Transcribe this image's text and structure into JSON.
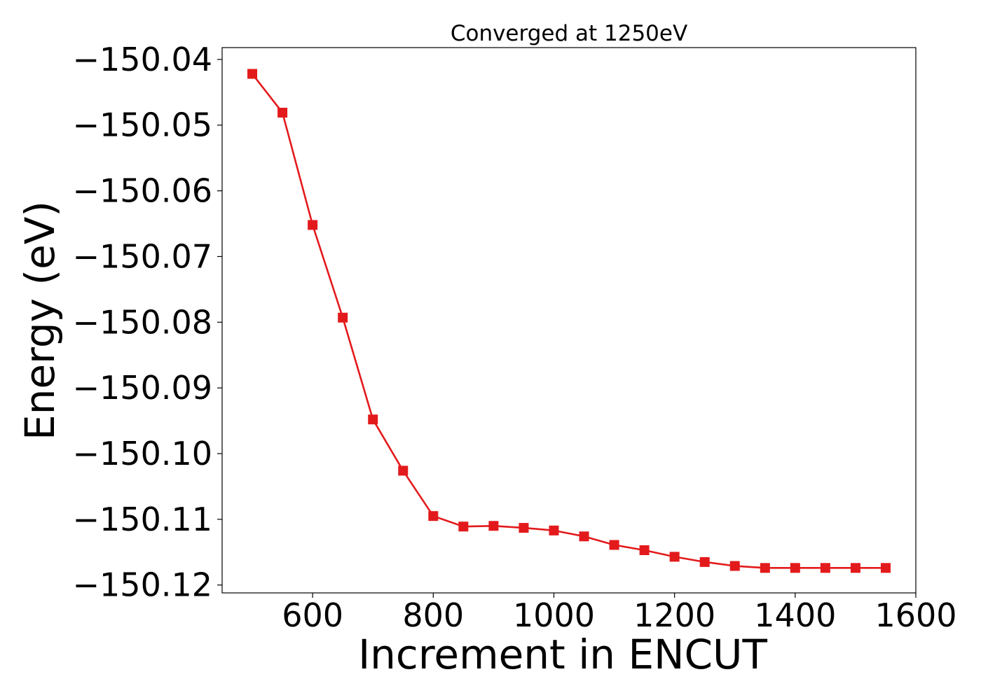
{
  "chart_data": {
    "type": "line",
    "title": "Converged at 1250eV",
    "xlabel": "Increment in ENCUT",
    "ylabel": "Energy (eV)",
    "xlim": [
      450,
      1600
    ],
    "ylim": [
      -150.1212,
      -150.0382
    ],
    "xticks": [
      600,
      800,
      1000,
      1200,
      1400,
      1600
    ],
    "yticks": [
      -150.04,
      -150.05,
      -150.06,
      -150.07,
      -150.08,
      -150.09,
      -150.1,
      -150.11,
      -150.12
    ],
    "ytick_labels": [
      "−150.04",
      "−150.05",
      "−150.06",
      "−150.07",
      "−150.08",
      "−150.09",
      "−150.10",
      "−150.11",
      "−150.12"
    ],
    "grid": false,
    "series": [
      {
        "color": "#e31a1c",
        "marker": "square",
        "x": [
          500,
          550,
          600,
          650,
          700,
          750,
          800,
          850,
          900,
          950,
          1000,
          1050,
          1100,
          1150,
          1200,
          1250,
          1300,
          1350,
          1400,
          1450,
          1500,
          1550
        ],
        "y": [
          -150.0422,
          -150.0481,
          -150.0652,
          -150.0793,
          -150.0948,
          -150.1026,
          -150.1095,
          -150.1111,
          -150.111,
          -150.1113,
          -150.1117,
          -150.1126,
          -150.1139,
          -150.1147,
          -150.1157,
          -150.1165,
          -150.1171,
          -150.1174,
          -150.1174,
          -150.1174,
          -150.1174,
          -150.1174
        ]
      }
    ]
  }
}
